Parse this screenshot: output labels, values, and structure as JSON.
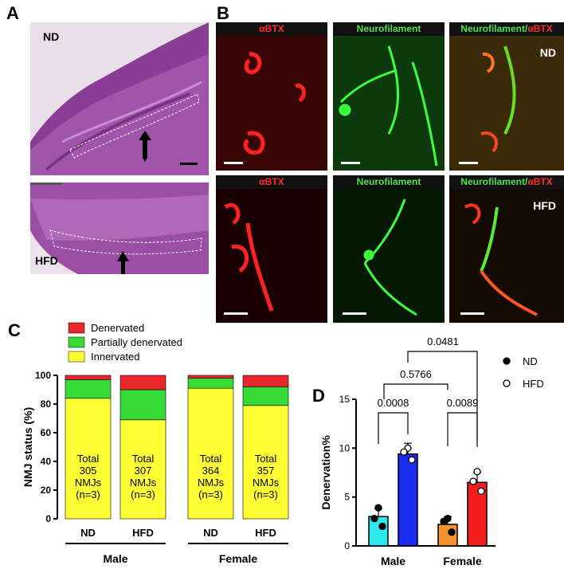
{
  "panels": {
    "A": {
      "letter": "A",
      "top_label": "ND",
      "bottom_label": "HFD"
    },
    "B": {
      "letter": "B",
      "headers": [
        "αBTX",
        "Neurofilament",
        "Neurofilament/",
        "αBTX"
      ],
      "row_tags": [
        "ND",
        "HFD"
      ]
    },
    "C": {
      "letter": "C"
    },
    "D": {
      "letter": "D"
    }
  },
  "colors": {
    "red": "#e8262b",
    "green": "#36dc35",
    "yellow": "#ffff33",
    "cyan": "#2ee6ee",
    "blue": "#1a2bef",
    "orange": "#f59230",
    "brightred": "#f21d1d"
  },
  "chart_data": [
    {
      "type": "bar",
      "stacked": true,
      "categories": [
        "ND",
        "HFD",
        "ND",
        "HFD"
      ],
      "groups": [
        "Male",
        "Female"
      ],
      "legend": [
        "Denervated",
        "Partially denervated",
        "Innervated"
      ],
      "series": [
        {
          "name": "Innervated",
          "values": [
            84,
            69,
            91,
            79
          ]
        },
        {
          "name": "Partially denervated",
          "values": [
            13,
            21,
            7,
            13
          ]
        },
        {
          "name": "Denervated",
          "values": [
            3,
            10,
            2,
            8
          ]
        }
      ],
      "bar_labels": [
        [
          "Total",
          "305",
          "NMJs",
          "(n=3)"
        ],
        [
          "Total",
          "307",
          "NMJs",
          "(n=3)"
        ],
        [
          "Total",
          "364",
          "NMJs",
          "(n=3)"
        ],
        [
          "Total",
          "357",
          "NMJs",
          "(n=3)"
        ]
      ],
      "ylabel": "NMJ status (%)",
      "ylim": [
        0,
        100
      ],
      "yticks": [
        0,
        20,
        40,
        60,
        80,
        100
      ]
    },
    {
      "type": "bar",
      "categories": [
        "Male ND",
        "Male HFD",
        "Female ND",
        "Female HFD"
      ],
      "groups": [
        "Male",
        "Female"
      ],
      "values": [
        3.0,
        9.4,
        2.2,
        6.5
      ],
      "errors": [
        0.8,
        1.1,
        0.8,
        1.0
      ],
      "points": [
        [
          3.9,
          2.8,
          2.0
        ],
        [
          10.0,
          9.6,
          8.8
        ],
        [
          2.8,
          2.5,
          1.4
        ],
        [
          7.6,
          6.6,
          5.6
        ]
      ],
      "legend": [
        "ND",
        "HFD"
      ],
      "ylabel": "Denervation%",
      "ylim": [
        0,
        15
      ],
      "yticks": [
        0,
        5,
        10,
        15
      ],
      "pvalues": [
        "0.0008",
        "0.0089",
        "0.5766",
        "0.0481"
      ]
    }
  ]
}
